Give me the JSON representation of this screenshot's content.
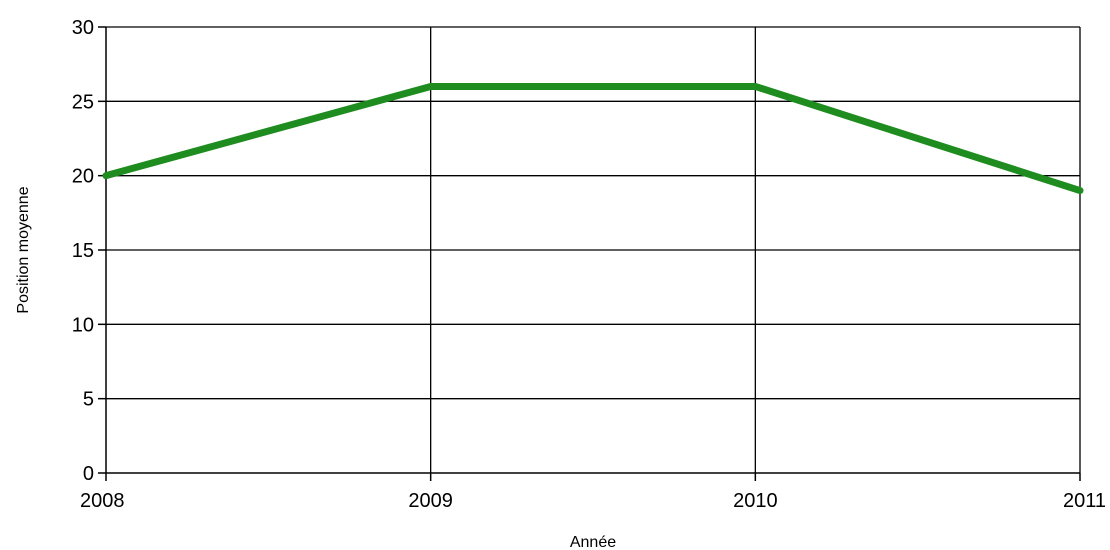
{
  "chart_data": {
    "type": "line",
    "x": [
      "2008",
      "2009",
      "2010",
      "2011"
    ],
    "series": [
      {
        "values": [
          20,
          26,
          26,
          19
        ],
        "color": "#1e8c1e"
      }
    ],
    "xlabel": "Année",
    "ylabel": "Position moyenne",
    "ylim": [
      0,
      30
    ],
    "yticks": [
      0,
      5,
      10,
      15,
      20,
      25,
      30
    ],
    "grid": true,
    "legend": "none"
  }
}
